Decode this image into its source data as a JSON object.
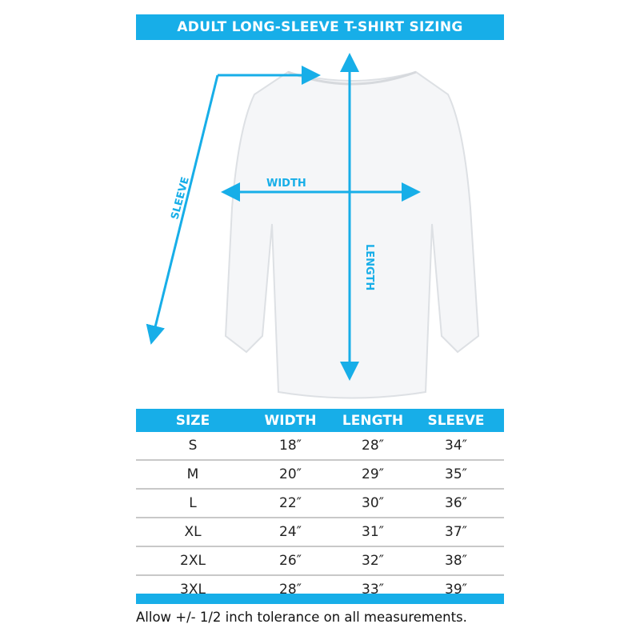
{
  "title": "ADULT LONG-SLEEVE T-SHIRT SIZING",
  "diagram": {
    "labels": {
      "width": "WIDTH",
      "length": "LENGTH",
      "sleeve": "SLEEVE"
    },
    "accent_color": "#17aee8"
  },
  "table": {
    "headers": [
      "SIZE",
      "WIDTH",
      "LENGTH",
      "SLEEVE"
    ],
    "rows": [
      [
        "S",
        "18″",
        "28″",
        "34″"
      ],
      [
        "M",
        "20″",
        "29″",
        "35″"
      ],
      [
        "L",
        "22″",
        "30″",
        "36″"
      ],
      [
        "XL",
        "24″",
        "31″",
        "37″"
      ],
      [
        "2XL",
        "26″",
        "32″",
        "38″"
      ],
      [
        "3XL",
        "28″",
        "33″",
        "39″"
      ]
    ]
  },
  "note": "Allow +/- 1/2 inch tolerance on all measurements."
}
